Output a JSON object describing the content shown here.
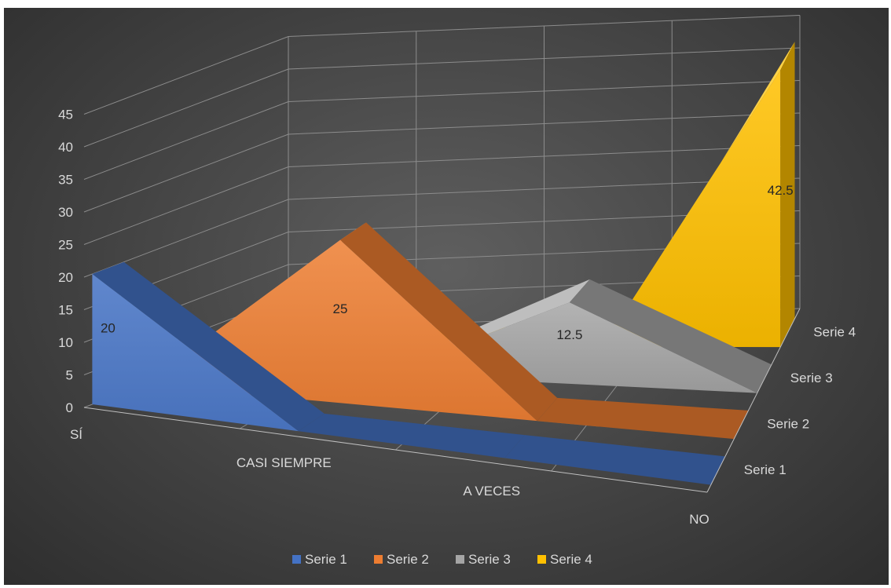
{
  "chart_data": {
    "type": "area",
    "variant": "3d-area",
    "categories": [
      "SÍ",
      "CASI SIEMPRE",
      "A VECES",
      "NO"
    ],
    "series": [
      {
        "name": "Serie 1",
        "color": "#4472c4",
        "values": [
          20,
          0,
          0,
          0
        ]
      },
      {
        "name": "Serie 2",
        "color": "#ed7d31",
        "values": [
          0,
          25,
          0,
          0
        ]
      },
      {
        "name": "Serie 3",
        "color": "#a5a5a5",
        "values": [
          0,
          0,
          12.5,
          0
        ]
      },
      {
        "name": "Serie 4",
        "color": "#ffc000",
        "values": [
          0,
          0,
          0,
          42.5
        ]
      }
    ],
    "data_labels": [
      "20",
      "25",
      "12.5",
      "42.5"
    ],
    "y_ticks": [
      "0",
      "5",
      "10",
      "15",
      "20",
      "25",
      "30",
      "35",
      "40",
      "45"
    ],
    "ylim": [
      0,
      45
    ],
    "grid": true,
    "legend": "bottom"
  }
}
